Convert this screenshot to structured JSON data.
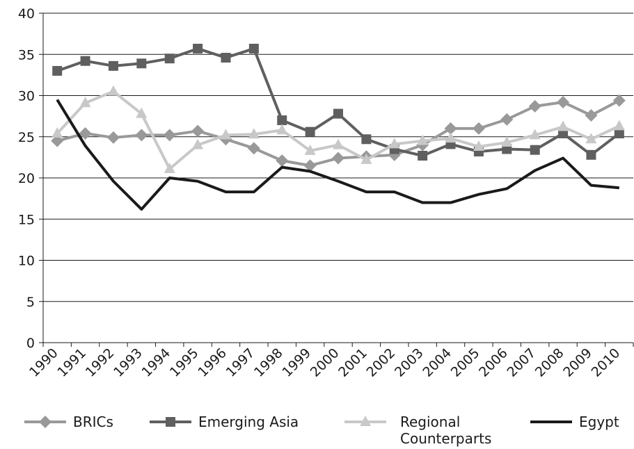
{
  "chart_data": {
    "type": "line",
    "categories": [
      "1990",
      "1991",
      "1992",
      "1993",
      "1994",
      "1995",
      "1996",
      "1997",
      "1998",
      "1999",
      "2000",
      "2001",
      "2002",
      "2003",
      "2004",
      "2005",
      "2006",
      "2007",
      "2008",
      "2009",
      "2010"
    ],
    "ylim": [
      0,
      40
    ],
    "yticks": [
      0,
      5,
      10,
      15,
      20,
      25,
      30,
      35,
      40
    ],
    "grid": true,
    "legend": "bottom",
    "series": [
      {
        "name": "BRICs",
        "color": "#999999",
        "marker": "diamond",
        "values": [
          24.5,
          25.4,
          24.9,
          25.2,
          25.2,
          25.7,
          24.7,
          23.6,
          22.1,
          21.5,
          22.4,
          22.6,
          22.8,
          24.0,
          26.0,
          26.0,
          27.1,
          28.7,
          29.2,
          27.6,
          29.4
        ]
      },
      {
        "name": "Emerging Asia",
        "color": "#5f5f5f",
        "marker": "square",
        "values": [
          33.0,
          34.2,
          33.6,
          33.9,
          34.5,
          35.7,
          34.6,
          35.7,
          27.0,
          25.6,
          27.8,
          24.7,
          23.5,
          22.7,
          24.1,
          23.2,
          23.5,
          23.4,
          25.4,
          22.8,
          25.4
        ]
      },
      {
        "name": "Regional Counterparts",
        "color": "#c8c8c8",
        "marker": "triangle",
        "values": [
          25.4,
          29.1,
          30.5,
          27.8,
          21.1,
          24.0,
          25.2,
          25.3,
          25.8,
          23.3,
          24.0,
          22.2,
          24.1,
          24.5,
          24.8,
          23.8,
          24.3,
          25.2,
          26.2,
          24.7,
          26.3
        ]
      },
      {
        "name": "Egypt",
        "color": "#1a1a1a",
        "marker": "none",
        "values": [
          29.5,
          23.9,
          19.6,
          16.2,
          20.0,
          19.6,
          18.3,
          18.3,
          21.3,
          20.8,
          19.6,
          18.3,
          18.3,
          17.0,
          17.0,
          18.0,
          18.7,
          20.9,
          22.4,
          19.1,
          18.8
        ]
      }
    ]
  }
}
